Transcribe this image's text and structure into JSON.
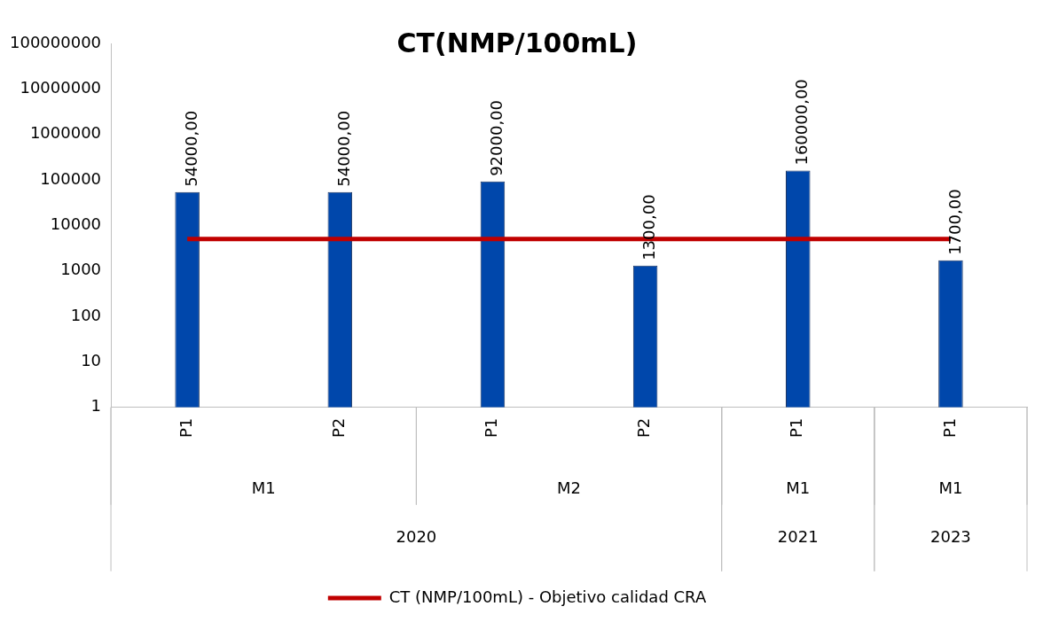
{
  "chart_data": {
    "type": "bar",
    "title": "CT(NMP/100mL)",
    "categories": [
      "P1",
      "P2",
      "P1",
      "P2",
      "P1",
      "P1"
    ],
    "series": [
      {
        "color": "#0047ab",
        "values": [
          54000,
          54000,
          92000,
          1300,
          160000,
          1700
        ],
        "value_labels": [
          "54000,00",
          "54000,00",
          "92000,00",
          "1300,00",
          "160000,00",
          "1700,00"
        ]
      },
      {
        "type": "line",
        "name": "CT (NMP/100mL) - Objetivo calidad CRA",
        "color": "#c00000",
        "values": [
          5000,
          5000,
          5000,
          5000,
          5000,
          5000
        ]
      }
    ],
    "annotations": [
      "M1",
      "M2",
      "M1",
      "M1",
      "2020",
      "2021",
      "2023"
    ],
    "log": "y",
    "ylim": [
      1,
      100000000
    ],
    "yticks": [
      1,
      10,
      100,
      1000,
      10000,
      100000,
      1000000,
      10000000,
      100000000
    ],
    "grid": false,
    "legend": "bottom"
  }
}
